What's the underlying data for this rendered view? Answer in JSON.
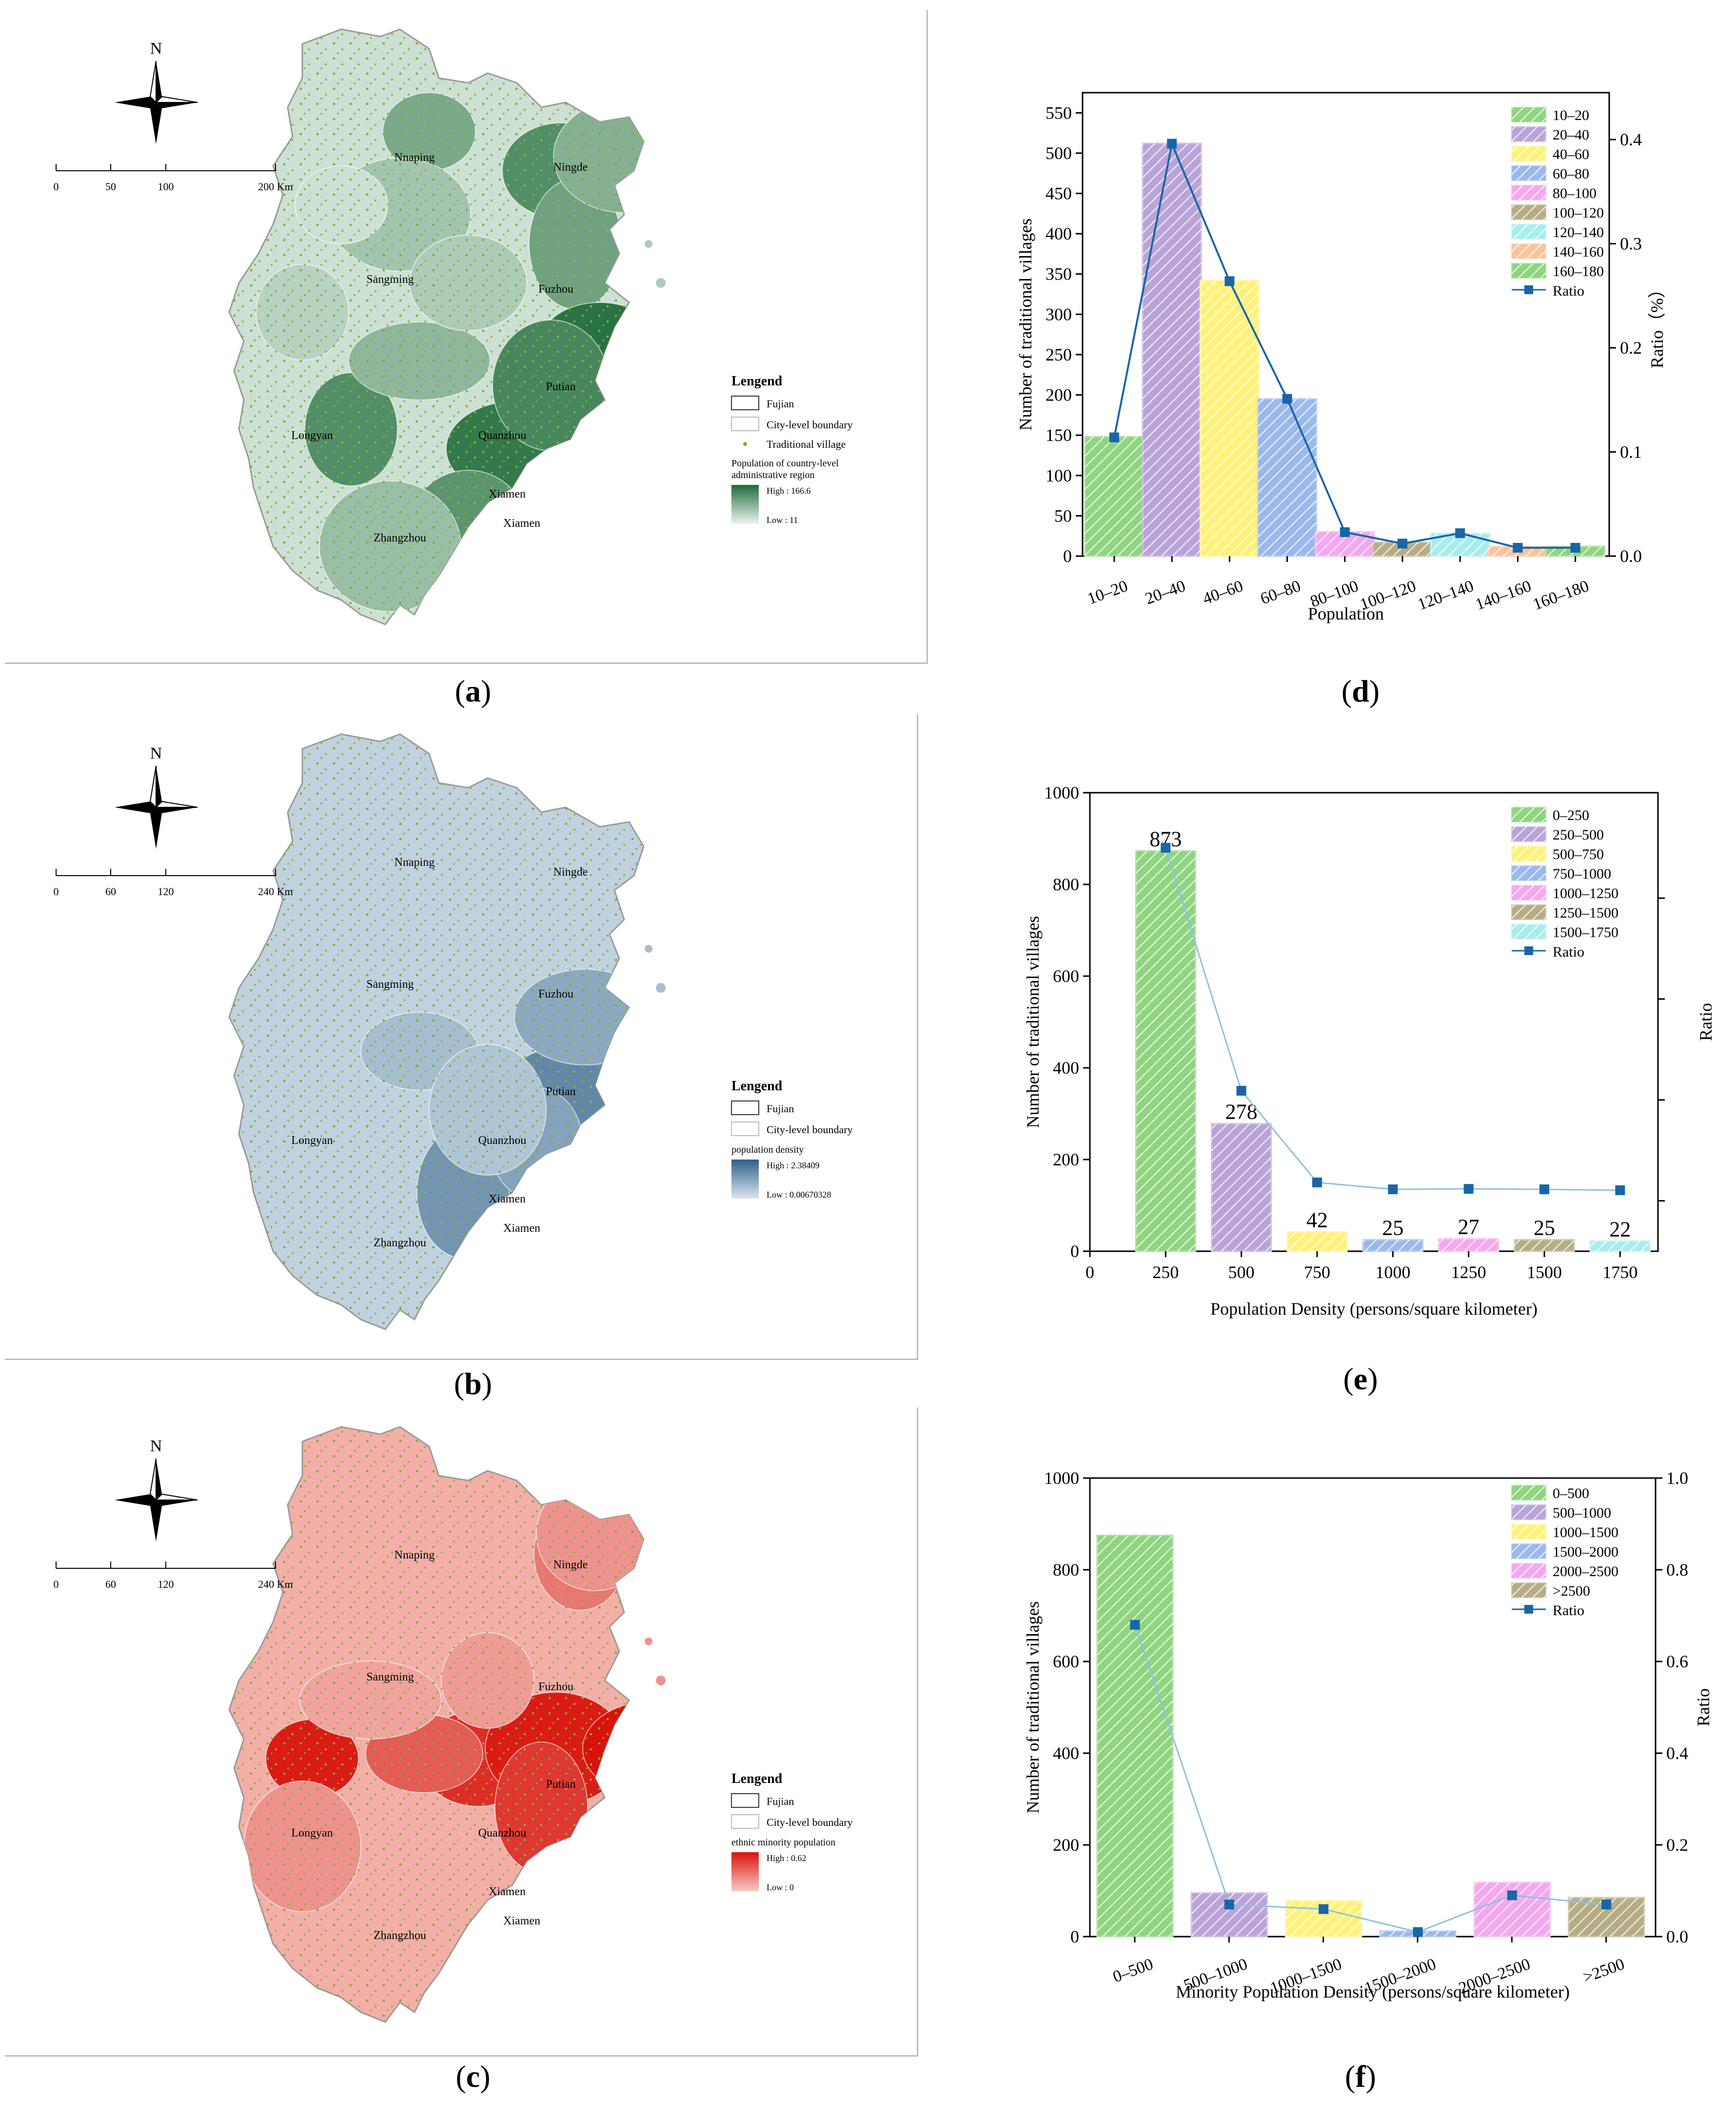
{
  "panels": {
    "a": {
      "label": "a",
      "compass": "N",
      "scale_ticks": [
        "0",
        "50",
        "100",
        "200 Km"
      ],
      "cities": [
        "Nnaping",
        "Ningde",
        "Sangming",
        "Fuzhou",
        "Putian",
        "Longyan",
        "Quanzhou",
        "Xiamen",
        "Zhangzhou",
        "Xiamen"
      ],
      "legend": {
        "title": "Lengend",
        "fujian": "Fujian",
        "city": "City-level boundary",
        "village": "Traditional village",
        "ramp_title_1": "Population of country-level",
        "ramp_title_2": "administrative region",
        "high": "High : 166.6",
        "low": "Low : 11"
      },
      "colors": {
        "high": "#1f6b3a",
        "low": "#eaf5ee"
      }
    },
    "b": {
      "label": "b",
      "compass": "N",
      "scale_ticks": [
        "0",
        "60",
        "120",
        "240 Km"
      ],
      "cities": [
        "Nnaping",
        "Ningde",
        "Sangming",
        "Fuzhou",
        "Putian",
        "Longyan",
        "Quanzhou",
        "Xiamen",
        "Zhangzhou",
        "Xiamen"
      ],
      "legend": {
        "title": "Lengend",
        "fujian": "Fujian",
        "city": "City-level boundary",
        "ramp_title_1": "population density",
        "high": "High : 2.38409",
        "low": "Low : 0.00670328"
      },
      "colors": {
        "high": "#2f5f8a",
        "low": "#d9e6ee"
      }
    },
    "c": {
      "label": "c",
      "compass": "N",
      "scale_ticks": [
        "0",
        "60",
        "120",
        "240 Km"
      ],
      "cities": [
        "Nnaping",
        "Ningde",
        "Sangming",
        "Fuzhou",
        "Putian",
        "Longyan",
        "Quanzhou",
        "Xiamen",
        "Zhangzhou",
        "Xiamen"
      ],
      "legend": {
        "title": "Lengend",
        "fujian": "Fujian",
        "city": "City-level boundary",
        "ramp_title_1": "ethnic minority population",
        "high": "High : 0.62",
        "low": "Low : 0"
      },
      "colors": {
        "high": "#d9120c",
        "low": "#f7c9c4"
      }
    },
    "d": {
      "label": "d"
    },
    "e": {
      "label": "e"
    },
    "f": {
      "label": "f"
    }
  },
  "chart_data": [
    {
      "id": "d",
      "type": "bar",
      "categories": [
        "10–20",
        "20–40",
        "40–60",
        "60–80",
        "80–100",
        "100–120",
        "120–140",
        "140–160",
        "160–180"
      ],
      "series": [
        {
          "name": "Number of traditional villages",
          "values": [
            148,
            512,
            342,
            195,
            30,
            17,
            28,
            12,
            12
          ]
        },
        {
          "name": "Ratio",
          "values": [
            0.114,
            0.396,
            0.264,
            0.151,
            0.023,
            0.012,
            0.022,
            0.008,
            0.008
          ]
        }
      ],
      "legend": [
        "10–20",
        "20–40",
        "40–60",
        "60–80",
        "80–100",
        "100–120",
        "120–140",
        "140–160",
        "160–180",
        "Ratio"
      ],
      "xlabel": "Population",
      "ylabel": "Number of traditional villages",
      "y2label": "Ratio（%）",
      "ylim": [
        0,
        575
      ],
      "yticks": [
        "0",
        "50",
        "100",
        "150",
        "200",
        "250",
        "300",
        "350",
        "400",
        "450",
        "500",
        "550"
      ],
      "y2lim": [
        0,
        0.445
      ],
      "y2ticks": [
        "0.0",
        "0.1",
        "0.2",
        "0.3",
        "0.4"
      ]
    },
    {
      "id": "e",
      "type": "bar",
      "categories": [
        "250",
        "500",
        "750",
        "1000",
        "1250",
        "1500",
        "1750"
      ],
      "series": [
        {
          "name": "Number of traditional villages",
          "values": [
            873,
            278,
            42,
            25,
            27,
            25,
            22
          ]
        },
        {
          "name": "Ratio",
          "values": [
            0.88,
            0.35,
            0.15,
            0.135,
            0.136,
            0.135,
            0.133
          ]
        }
      ],
      "data_labels": [
        "873",
        "278",
        "42",
        "25",
        "27",
        "25",
        "22"
      ],
      "legend": [
        "0–250",
        "250–500",
        "500–750",
        "750–1000",
        "1000–1250",
        "1250–1500",
        "1500–1750",
        "Ratio"
      ],
      "xlabel": "Population Density (persons/square kilometer)",
      "ylabel": "Number of traditional villages",
      "y2label": "Ratio",
      "xticks": [
        "0",
        "250",
        "500",
        "750",
        "1000",
        "1250",
        "1500",
        "1750"
      ],
      "ylim": [
        0,
        1000
      ],
      "yticks": [
        "0",
        "200",
        "400",
        "600",
        "800",
        "1000"
      ],
      "y2lim": [
        0,
        1
      ]
    },
    {
      "id": "f",
      "type": "bar",
      "categories": [
        "0–500",
        "500–1000",
        "1000–1500",
        "1500–2000",
        "2000–2500",
        ">2500"
      ],
      "series": [
        {
          "name": "Number of traditional villages",
          "values": [
            875,
            95,
            78,
            12,
            118,
            85
          ]
        },
        {
          "name": "Ratio",
          "values": [
            0.68,
            0.07,
            0.06,
            0.01,
            0.09,
            0.07
          ]
        }
      ],
      "legend": [
        "0–500",
        "500–1000",
        "1000–1500",
        "1500–2000",
        "2000–2500",
        ">2500",
        "Ratio"
      ],
      "xlabel": "Minority Population Density (persons/square kilometer)",
      "ylabel": "Number of traditional villages",
      "y2label": "Ratio",
      "ylim": [
        0,
        1000
      ],
      "yticks": [
        "0",
        "200",
        "400",
        "600",
        "800",
        "1000"
      ],
      "y2lim": [
        0,
        1
      ],
      "y2ticks": [
        "0.0",
        "0.2",
        "0.4",
        "0.6",
        "0.8",
        "1.0"
      ]
    }
  ],
  "bar_colors": [
    "#8fd47f",
    "#b9a4d9",
    "#fff27a",
    "#9ab8ec",
    "#f4a8ee",
    "#b7ad85",
    "#a9ecec",
    "#f9c49b",
    "#8fd47f"
  ],
  "ratio_color": "#1866a8"
}
